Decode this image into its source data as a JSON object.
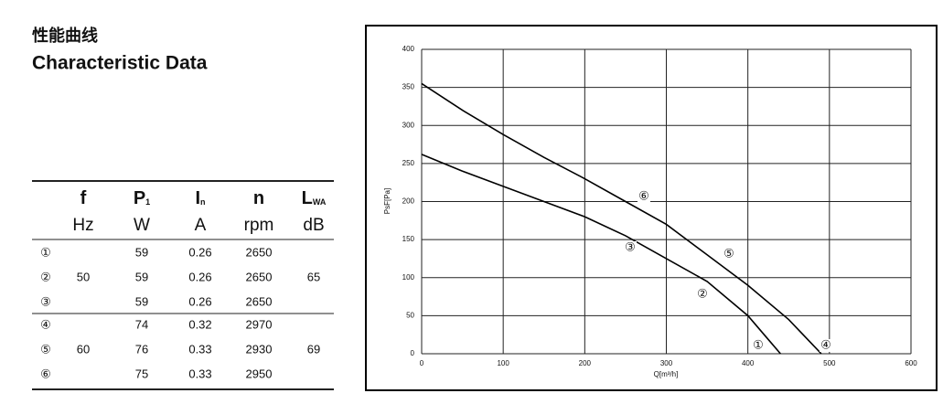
{
  "header": {
    "title_cn": "性能曲线",
    "title": "Characteristic Data"
  },
  "table": {
    "columns": [
      {
        "symbol": "f",
        "sub": "",
        "unit": "Hz"
      },
      {
        "symbol": "P",
        "sub": "1",
        "unit": "W"
      },
      {
        "symbol": "I",
        "sub": "n",
        "unit": "A"
      },
      {
        "symbol": "n",
        "sub": "",
        "unit": "rpm"
      },
      {
        "symbol": "L",
        "sub": "WA",
        "unit": "dB"
      }
    ],
    "groups": [
      {
        "f": "50",
        "lwa": "65",
        "rows": [
          [
            "①",
            "59",
            "0.26",
            "2650"
          ],
          [
            "②",
            "59",
            "0.26",
            "2650"
          ],
          [
            "③",
            "59",
            "0.26",
            "2650"
          ]
        ]
      },
      {
        "f": "60",
        "lwa": "69",
        "rows": [
          [
            "④",
            "74",
            "0.32",
            "2970"
          ],
          [
            "⑤",
            "76",
            "0.33",
            "2930"
          ],
          [
            "⑥",
            "75",
            "0.33",
            "2950"
          ]
        ]
      }
    ]
  },
  "chart_data": {
    "type": "line",
    "xlabel": "Q[m³/h]",
    "ylabel": "PsF[Pa]",
    "xlim": [
      0,
      600
    ],
    "xticks": [
      0,
      100,
      200,
      300,
      400,
      500,
      600
    ],
    "ylim": [
      0,
      400
    ],
    "yticks": [
      0,
      50,
      100,
      150,
      200,
      250,
      300,
      350,
      400
    ],
    "grid": true,
    "series": [
      {
        "color": "#000000",
        "x": [
          0,
          50,
          100,
          150,
          200,
          250,
          300,
          350,
          400,
          420,
          440
        ],
        "values": [
          262,
          240,
          220,
          200,
          180,
          155,
          125,
          95,
          50,
          25,
          0
        ]
      },
      {
        "color": "#000000",
        "x": [
          0,
          50,
          100,
          150,
          200,
          250,
          300,
          350,
          400,
          450,
          490
        ],
        "values": [
          355,
          320,
          288,
          258,
          230,
          200,
          170,
          130,
          90,
          45,
          0
        ]
      }
    ],
    "annotations": [
      "①",
      "②",
      "③",
      "④",
      "⑤",
      "⑥"
    ]
  }
}
